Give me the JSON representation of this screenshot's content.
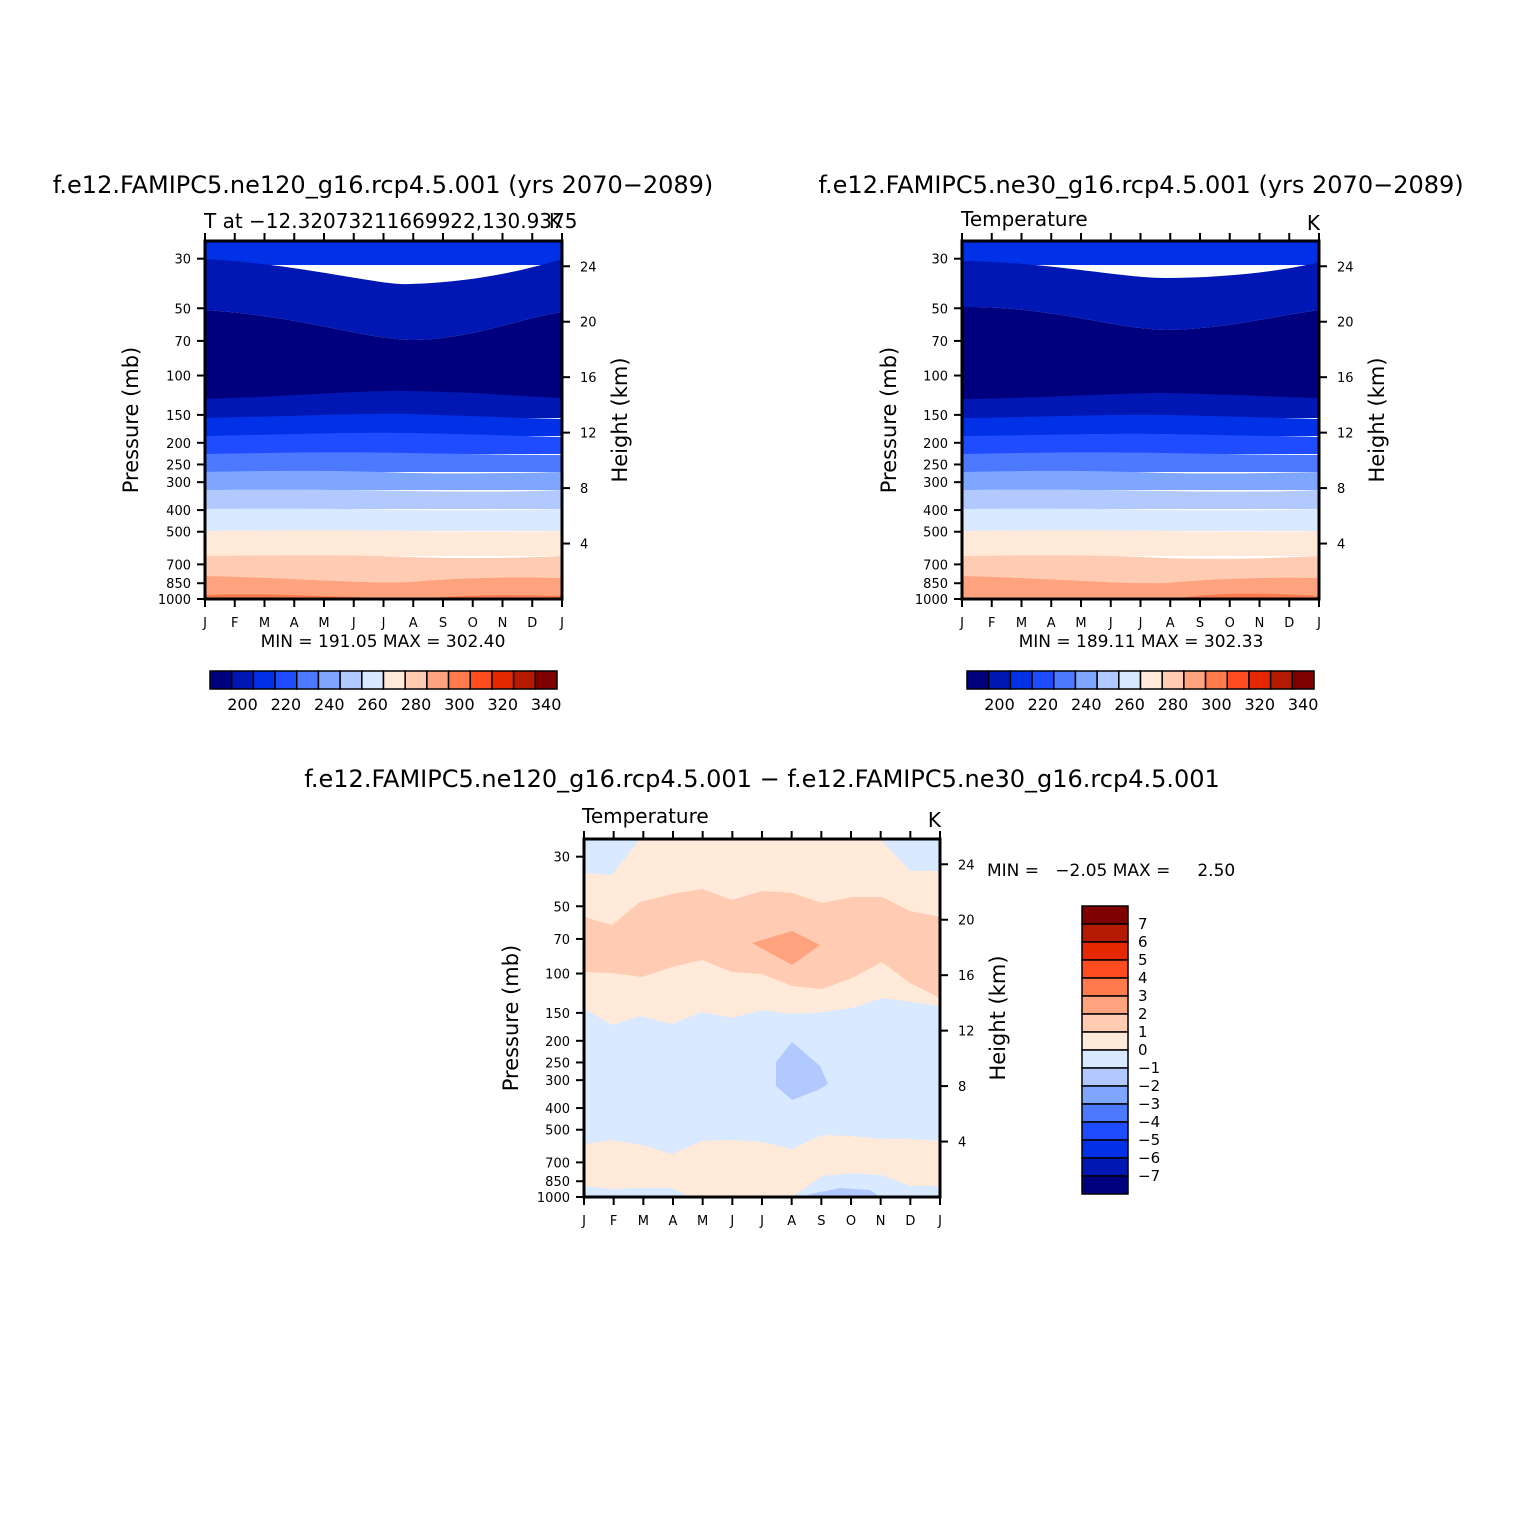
{
  "panels": [
    {
      "title": "f.e12.FAMIPC5.ne120_g16.rcp4.5.001 (yrs 2070−2089)",
      "subtitle_left": "T at −12.32073211669922,130.9375",
      "subtitle_right": "K",
      "minmax": "MIN = 191.05 MAX = 302.40"
    },
    {
      "title": "f.e12.FAMIPC5.ne30_g16.rcp4.5.001 (yrs 2070−2089)",
      "subtitle_left": "Temperature",
      "subtitle_right": "K",
      "minmax": "MIN = 189.11 MAX = 302.33"
    },
    {
      "title": "f.e12.FAMIPC5.ne120_g16.rcp4.5.001 − f.e12.FAMIPC5.ne30_g16.rcp4.5.001",
      "subtitle_left": "Temperature",
      "subtitle_right": "K",
      "minmax": "MIN =   −2.05 MAX =     2.50"
    }
  ],
  "axes": {
    "left_label": "Pressure (mb)",
    "right_label": "Height (km)",
    "pressure_ticks": [
      "30",
      "50",
      "70",
      "100",
      "150",
      "200",
      "250",
      "300",
      "400",
      "500",
      "700",
      "850",
      "1000"
    ],
    "pressure_values": [
      30,
      50,
      70,
      100,
      150,
      200,
      250,
      300,
      400,
      500,
      700,
      850,
      1000
    ],
    "height_ticks": [
      "24",
      "20",
      "16",
      "12",
      "8",
      "4"
    ],
    "height_values": [
      24,
      20,
      16,
      12,
      8,
      4
    ],
    "month_ticks": [
      "J",
      "F",
      "M",
      "A",
      "M",
      "J",
      "J",
      "A",
      "S",
      "O",
      "N",
      "D",
      "J"
    ]
  },
  "colorbars": {
    "abs_labels": [
      "200",
      "220",
      "240",
      "260",
      "280",
      "300",
      "320",
      "340"
    ],
    "abs_colors": [
      "#00007f",
      "#0017b4",
      "#0031e6",
      "#1f4cff",
      "#4c79ff",
      "#7fa6ff",
      "#b2c9ff",
      "#d9e9ff",
      "#ffe9d9",
      "#ffcbb2",
      "#ffa37f",
      "#ff7a4c",
      "#ff4c1f",
      "#e62800",
      "#b41a00",
      "#7f0000"
    ],
    "diff_labels": [
      "7",
      "6",
      "5",
      "4",
      "3",
      "2",
      "1",
      "0",
      "−1",
      "−2",
      "−3",
      "−4",
      "−5",
      "−6",
      "−7"
    ],
    "diff_colors": [
      "#7f0000",
      "#b41a00",
      "#e62800",
      "#ff4c1f",
      "#ff7a4c",
      "#ffa37f",
      "#ffcbb2",
      "#ffe9d9",
      "#d9e9ff",
      "#b2c9ff",
      "#7fa6ff",
      "#4c79ff",
      "#1f4cff",
      "#0031e6",
      "#0017b4",
      "#00007f"
    ]
  },
  "chart_data": [
    {
      "type": "heatmap",
      "title": "f.e12.FAMIPC5.ne120_g16.rcp4.5.001 (yrs 2070−2089)",
      "x": [
        "J",
        "F",
        "M",
        "A",
        "M",
        "J",
        "J",
        "A",
        "S",
        "O",
        "N",
        "D",
        "J"
      ],
      "y_pressure_mb": [
        1000,
        850,
        700,
        500,
        400,
        300,
        250,
        200,
        150,
        100,
        70,
        50,
        30
      ],
      "ylabel": "Pressure (mb)",
      "ylabel_right": "Height (km)",
      "units": "K",
      "min": 191.05,
      "max": 302.4
    },
    {
      "type": "heatmap",
      "title": "f.e12.FAMIPC5.ne30_g16.rcp4.5.001 (yrs 2070−2089)",
      "x": [
        "J",
        "F",
        "M",
        "A",
        "M",
        "J",
        "J",
        "A",
        "S",
        "O",
        "N",
        "D",
        "J"
      ],
      "y_pressure_mb": [
        1000,
        850,
        700,
        500,
        400,
        300,
        250,
        200,
        150,
        100,
        70,
        50,
        30
      ],
      "ylabel": "Pressure (mb)",
      "ylabel_right": "Height (km)",
      "units": "K",
      "min": 189.11,
      "max": 302.33
    },
    {
      "type": "heatmap",
      "title": "f.e12.FAMIPC5.ne120_g16.rcp4.5.001 − f.e12.FAMIPC5.ne30_g16.rcp4.5.001",
      "x": [
        "J",
        "F",
        "M",
        "A",
        "M",
        "J",
        "J",
        "A",
        "S",
        "O",
        "N",
        "D",
        "J"
      ],
      "y_pressure_mb": [
        1000,
        850,
        700,
        500,
        400,
        300,
        250,
        200,
        150,
        100,
        70,
        50,
        30
      ],
      "ylabel": "Pressure (mb)",
      "ylabel_right": "Height (km)",
      "units": "K",
      "min": -2.05,
      "max": 2.5
    }
  ]
}
